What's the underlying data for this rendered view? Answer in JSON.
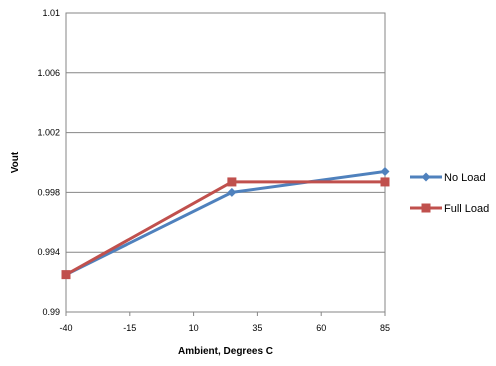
{
  "chart_data": {
    "type": "line",
    "title": "",
    "xlabel": "Ambient, Degrees C",
    "ylabel": "Vout",
    "x_ticks": [
      -40,
      -15,
      10,
      35,
      60,
      85
    ],
    "y_ticks": [
      0.99,
      0.994,
      0.998,
      1.002,
      1.006,
      1.01
    ],
    "y_tick_labels": [
      "0.99",
      "0.994",
      "0.998",
      "1.002",
      "1.006",
      "1.01"
    ],
    "xlim": [
      -40,
      85
    ],
    "ylim": [
      0.99,
      1.01
    ],
    "grid": "horizontal",
    "legend_position": "right",
    "series": [
      {
        "name": "No Load",
        "color": "#4f81bd",
        "marker": "diamond",
        "x": [
          -40,
          25,
          85
        ],
        "y": [
          0.9925,
          0.998,
          0.9994
        ]
      },
      {
        "name": "Full Load",
        "color": "#c0504d",
        "marker": "square",
        "x": [
          -40,
          25,
          85
        ],
        "y": [
          0.9925,
          0.9987,
          0.9987
        ]
      }
    ]
  }
}
